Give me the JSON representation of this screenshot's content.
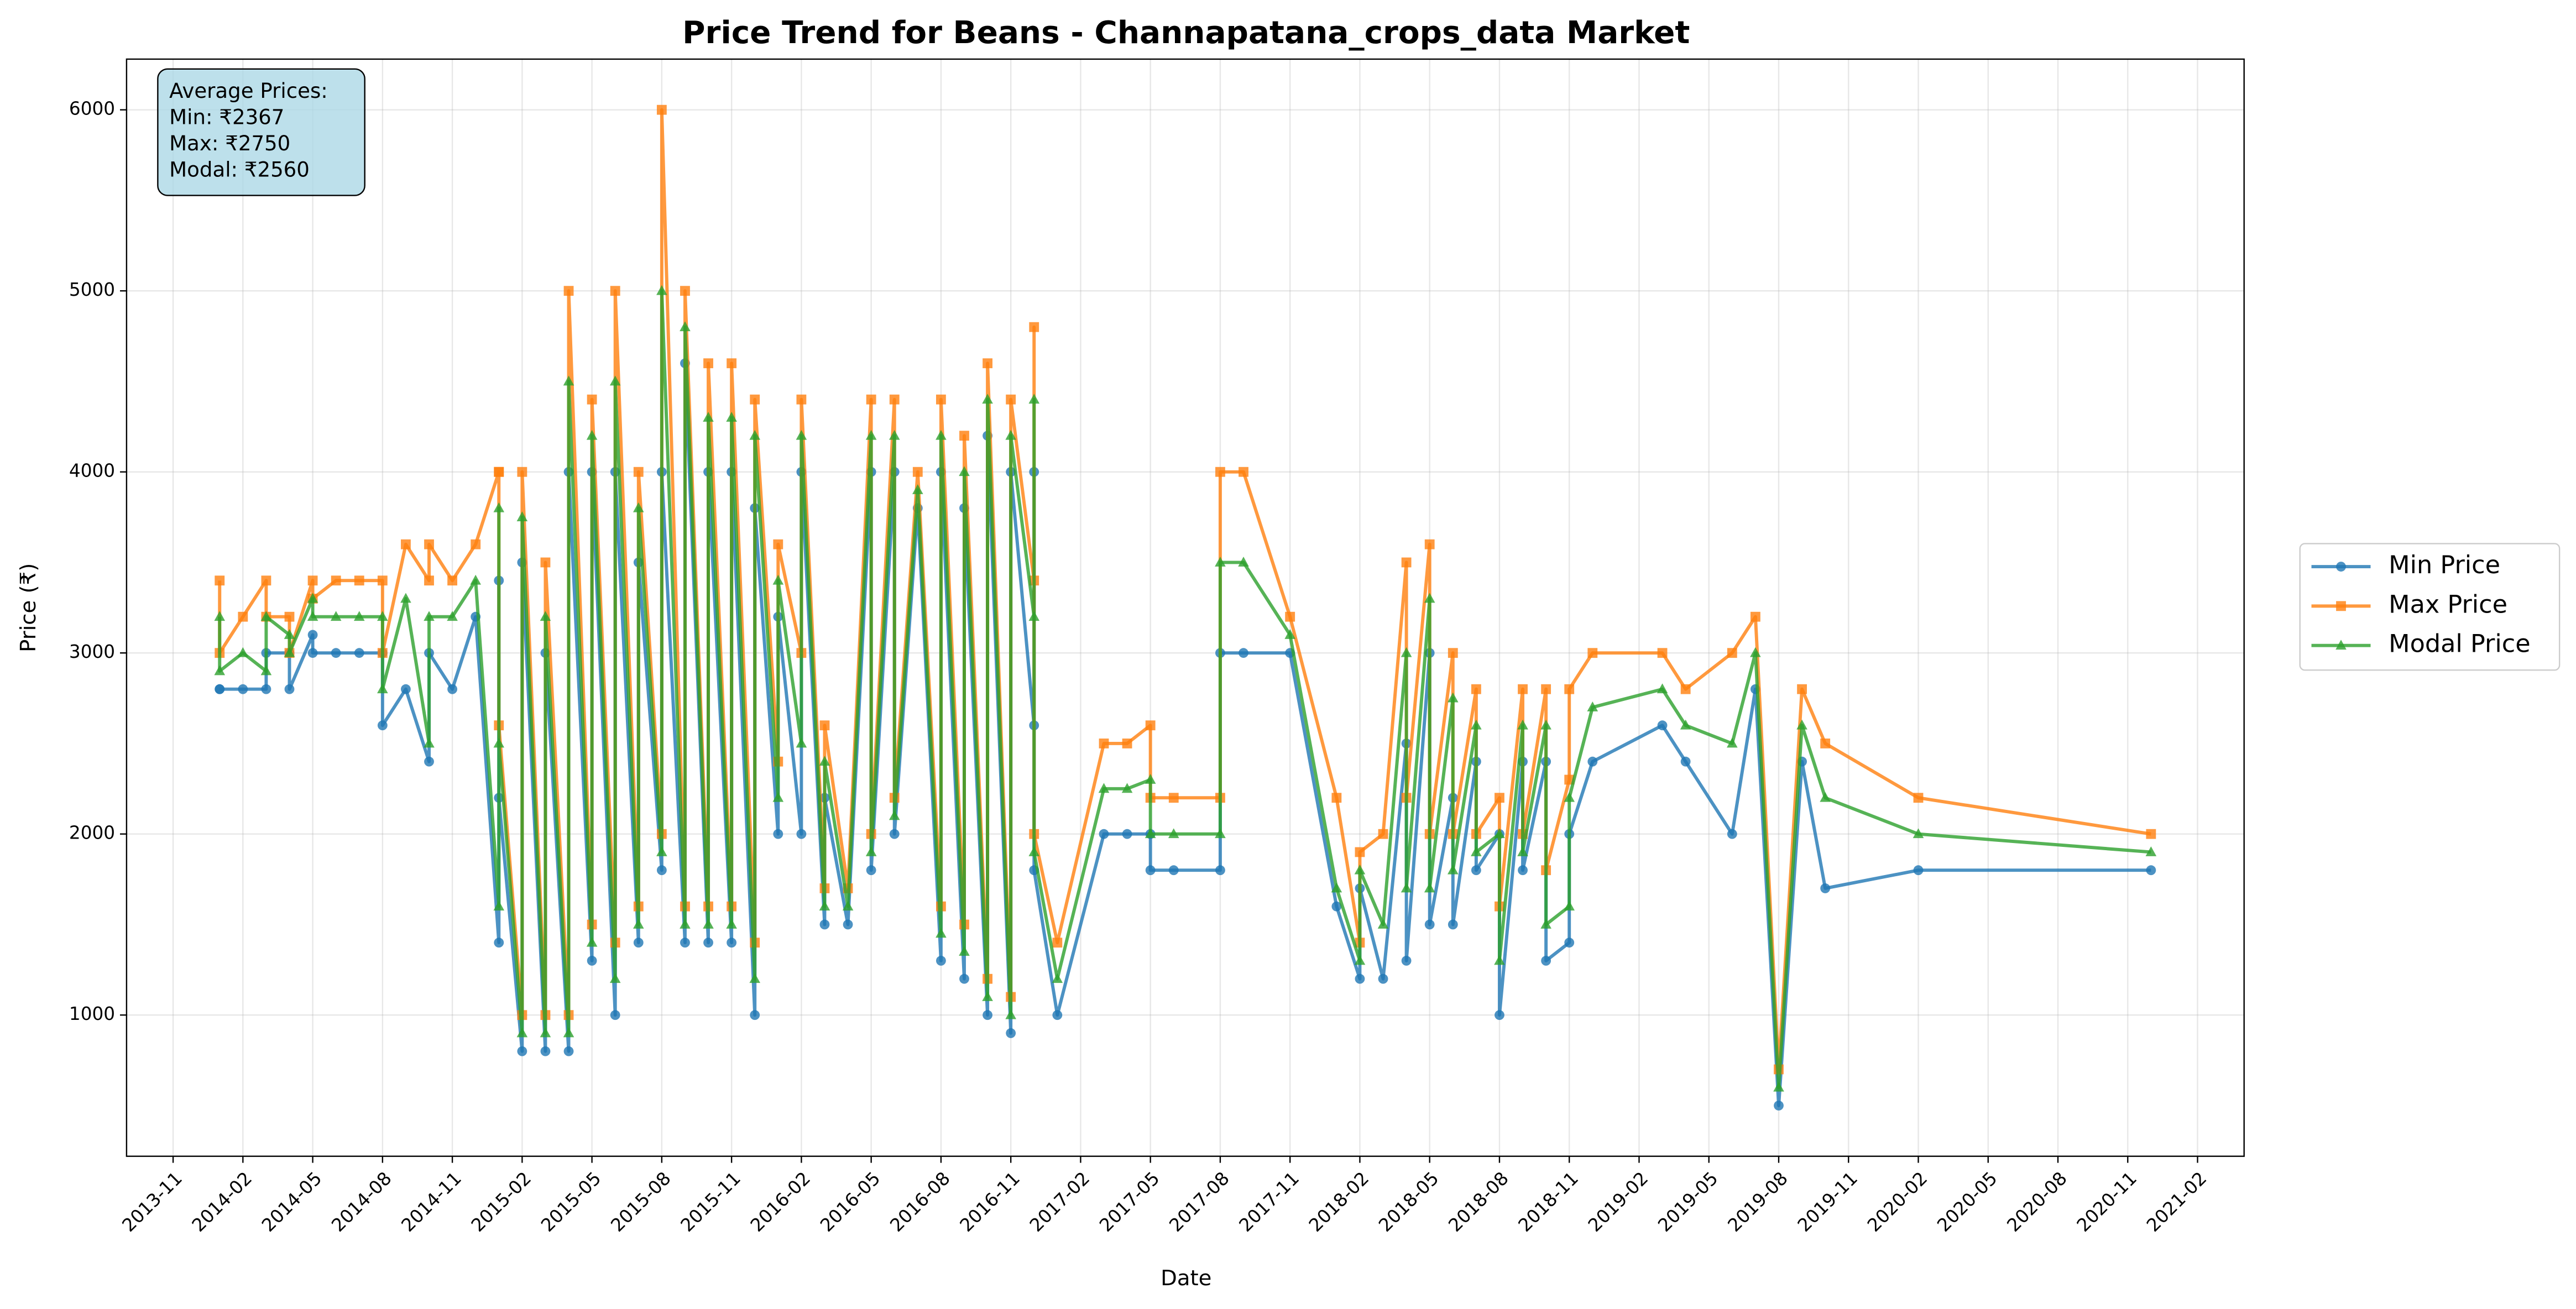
{
  "chart_data": {
    "type": "line",
    "title": "Price Trend for Beans - Channapatana_crops_data Market",
    "xlabel": "Date",
    "ylabel": "Price (₹)",
    "annotation": [
      "Average Prices:",
      "Min: ₹2367",
      "Max: ₹2750",
      "Modal: ₹2560"
    ],
    "legend": "outside right",
    "grid": true,
    "xlim": [
      "2013-09",
      "2021-04"
    ],
    "ylim": [
      220,
      6280
    ],
    "xticks": [
      "2013-11",
      "2014-02",
      "2014-05",
      "2014-08",
      "2014-11",
      "2015-02",
      "2015-05",
      "2015-08",
      "2015-11",
      "2016-02",
      "2016-05",
      "2016-08",
      "2016-11",
      "2017-02",
      "2017-05",
      "2017-08",
      "2017-11",
      "2018-02",
      "2018-05",
      "2018-08",
      "2018-11",
      "2019-02",
      "2019-05",
      "2019-08",
      "2019-11",
      "2020-02",
      "2020-05",
      "2020-08",
      "2020-11",
      "2021-02"
    ],
    "yticks": [
      1000,
      2000,
      3000,
      4000,
      5000,
      6000
    ],
    "x": [
      "2014-01",
      "2014-01",
      "2014-02",
      "2014-03",
      "2014-03",
      "2014-04",
      "2014-04",
      "2014-05",
      "2014-05",
      "2014-06",
      "2014-07",
      "2014-08",
      "2014-08",
      "2014-09",
      "2014-10",
      "2014-10",
      "2014-11",
      "2014-12",
      "2015-01",
      "2015-01",
      "2015-01",
      "2015-02",
      "2015-02",
      "2015-03",
      "2015-03",
      "2015-04",
      "2015-04",
      "2015-05",
      "2015-05",
      "2015-06",
      "2015-06",
      "2015-07",
      "2015-07",
      "2015-08",
      "2015-08",
      "2015-09",
      "2015-09",
      "2015-10",
      "2015-10",
      "2015-11",
      "2015-11",
      "2015-12",
      "2015-12",
      "2016-01",
      "2016-01",
      "2016-02",
      "2016-02",
      "2016-03",
      "2016-03",
      "2016-04",
      "2016-05",
      "2016-05",
      "2016-06",
      "2016-06",
      "2016-07",
      "2016-08",
      "2016-08",
      "2016-09",
      "2016-09",
      "2016-10",
      "2016-10",
      "2016-11",
      "2016-11",
      "2016-12",
      "2016-12",
      "2016-12",
      "2017-01",
      "2017-03",
      "2017-04",
      "2017-05",
      "2017-05",
      "2017-06",
      "2017-08",
      "2017-08",
      "2017-09",
      "2017-11",
      "2018-01",
      "2018-02",
      "2018-02",
      "2018-03",
      "2018-04",
      "2018-04",
      "2018-05",
      "2018-05",
      "2018-06",
      "2018-06",
      "2018-07",
      "2018-07",
      "2018-08",
      "2018-08",
      "2018-09",
      "2018-09",
      "2018-10",
      "2018-10",
      "2018-11",
      "2018-11",
      "2018-12",
      "2019-03",
      "2019-04",
      "2019-06",
      "2019-07",
      "2019-08",
      "2019-09",
      "2019-10",
      "2020-02",
      "2020-12"
    ],
    "series": [
      {
        "name": "Min Price",
        "color": "#1f77b4",
        "marker": "circle",
        "values": [
          2800,
          2800,
          2800,
          2800,
          3000,
          3000,
          2800,
          3100,
          3000,
          3000,
          3000,
          3000,
          2600,
          2800,
          2400,
          3000,
          2800,
          3200,
          1400,
          3400,
          2200,
          800,
          3500,
          800,
          3000,
          800,
          4000,
          1300,
          4000,
          1000,
          4000,
          1400,
          3500,
          1800,
          4000,
          1400,
          4600,
          1400,
          4000,
          1400,
          4000,
          1000,
          3800,
          2000,
          3200,
          2000,
          4000,
          1500,
          2200,
          1500,
          4000,
          1800,
          4000,
          2000,
          3800,
          1300,
          4000,
          1200,
          3800,
          1000,
          4200,
          900,
          4000,
          2600,
          4000,
          1800,
          1000,
          2000,
          2000,
          2000,
          1800,
          1800,
          1800,
          3000,
          3000,
          3000,
          1600,
          1200,
          1700,
          1200,
          2500,
          1300,
          3000,
          1500,
          2200,
          1500,
          2400,
          1800,
          2000,
          1000,
          2400,
          1800,
          2400,
          1300,
          1400,
          2000,
          2400,
          2600,
          2400,
          2000,
          2800,
          500,
          2400,
          1700,
          1800,
          1800
        ]
      },
      {
        "name": "Max Price",
        "color": "#ff7f0e",
        "marker": "square",
        "values": [
          3400,
          3000,
          3200,
          3400,
          3200,
          3200,
          3000,
          3400,
          3300,
          3400,
          3400,
          3400,
          3000,
          3600,
          3400,
          3600,
          3400,
          3600,
          4000,
          4000,
          2600,
          1000,
          4000,
          1000,
          3500,
          1000,
          5000,
          1500,
          4400,
          1400,
          5000,
          1600,
          4000,
          2000,
          6000,
          1600,
          5000,
          1600,
          4600,
          1600,
          4600,
          1400,
          4400,
          2400,
          3600,
          3000,
          4400,
          1700,
          2600,
          1700,
          4400,
          2000,
          4400,
          2200,
          4000,
          1600,
          4400,
          1500,
          4200,
          1200,
          4600,
          1100,
          4400,
          3400,
          4800,
          2000,
          1400,
          2500,
          2500,
          2600,
          2200,
          2200,
          2200,
          4000,
          4000,
          3200,
          2200,
          1400,
          1900,
          2000,
          3500,
          2200,
          3600,
          2000,
          3000,
          2000,
          2800,
          2000,
          2200,
          1600,
          2800,
          2000,
          2800,
          1800,
          2300,
          2800,
          3000,
          3000,
          2800,
          3000,
          3200,
          700,
          2800,
          2500,
          2200,
          2000
        ]
      },
      {
        "name": "Modal Price",
        "color": "#2ca02c",
        "marker": "triangle",
        "values": [
          3200,
          2900,
          3000,
          2900,
          3200,
          3100,
          3000,
          3300,
          3200,
          3200,
          3200,
          3200,
          2800,
          3300,
          2500,
          3200,
          3200,
          3400,
          1600,
          3800,
          2500,
          900,
          3750,
          900,
          3200,
          900,
          4500,
          1400,
          4200,
          1200,
          4500,
          1500,
          3800,
          1900,
          5000,
          1500,
          4800,
          1500,
          4300,
          1500,
          4300,
          1200,
          4200,
          2200,
          3400,
          2500,
          4200,
          1600,
          2400,
          1600,
          4200,
          1900,
          4200,
          2100,
          3900,
          1450,
          4200,
          1350,
          4000,
          1100,
          4400,
          1000,
          4200,
          3200,
          4400,
          1900,
          1200,
          2250,
          2250,
          2300,
          2000,
          2000,
          2000,
          3500,
          3500,
          3100,
          1700,
          1300,
          1800,
          1500,
          3000,
          1700,
          3300,
          1700,
          2750,
          1800,
          2600,
          1900,
          2000,
          1300,
          2600,
          1900,
          2600,
          1500,
          1600,
          2200,
          2700,
          2800,
          2600,
          2500,
          3000,
          600,
          2600,
          2200,
          2000,
          1900
        ]
      }
    ]
  }
}
